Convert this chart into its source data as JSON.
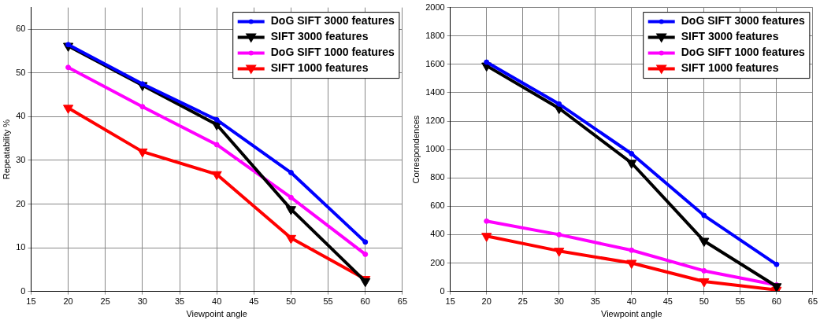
{
  "chart_data": [
    {
      "type": "line",
      "xlabel": "Viewpoint angle",
      "ylabel": "Repeatability %",
      "x": [
        20,
        30,
        40,
        50,
        60
      ],
      "xlim": [
        15,
        65
      ],
      "xticks": [
        15,
        20,
        25,
        30,
        35,
        40,
        45,
        50,
        55,
        60,
        65
      ],
      "ylim": [
        0,
        65
      ],
      "yticks": [
        0,
        10,
        20,
        30,
        40,
        50,
        60
      ],
      "grid": true,
      "legend": "top right",
      "line_style": "solid",
      "series": [
        {
          "name": "DoG SIFT 3000 features",
          "color": "#0000ff",
          "marker": "circle",
          "values": [
            56.5,
            47.5,
            39.3,
            27.2,
            11.3
          ]
        },
        {
          "name": "SIFT 3000 features",
          "color": "#000000",
          "marker": "triangle",
          "values": [
            56.2,
            47.2,
            38.2,
            18.8,
            2.3
          ]
        },
        {
          "name": "DoG SIFT 1000 features",
          "color": "#ff00ff",
          "marker": "circle",
          "values": [
            51.3,
            42.3,
            33.6,
            21.5,
            8.5
          ]
        },
        {
          "name": "SIFT 1000 features",
          "color": "#ff0000",
          "marker": "triangle",
          "values": [
            42,
            32,
            26.8,
            12.2,
            2.8
          ]
        }
      ]
    },
    {
      "type": "line",
      "xlabel": "Viewpoint angle",
      "ylabel": "Correspondences",
      "x": [
        20,
        30,
        40,
        50,
        60
      ],
      "xlim": [
        15,
        65
      ],
      "xticks": [
        15,
        20,
        25,
        30,
        35,
        40,
        45,
        50,
        55,
        60,
        65
      ],
      "ylim": [
        0,
        2000
      ],
      "yticks": [
        0,
        200,
        400,
        600,
        800,
        1000,
        1200,
        1400,
        1600,
        1800,
        2000
      ],
      "grid": true,
      "legend": "top right",
      "line_style": "solid",
      "series": [
        {
          "name": "DoG SIFT 3000 features",
          "color": "#0000ff",
          "marker": "circle",
          "values": [
            1615,
            1320,
            970,
            535,
            190
          ]
        },
        {
          "name": "SIFT 3000 features",
          "color": "#000000",
          "marker": "triangle",
          "values": [
            1590,
            1290,
            905,
            355,
            35
          ]
        },
        {
          "name": "DoG SIFT 1000 features",
          "color": "#ff00ff",
          "marker": "circle",
          "values": [
            495,
            400,
            290,
            145,
            45
          ]
        },
        {
          "name": "SIFT 1000 features",
          "color": "#ff0000",
          "marker": "triangle",
          "values": [
            390,
            285,
            200,
            70,
            10
          ]
        }
      ]
    }
  ]
}
